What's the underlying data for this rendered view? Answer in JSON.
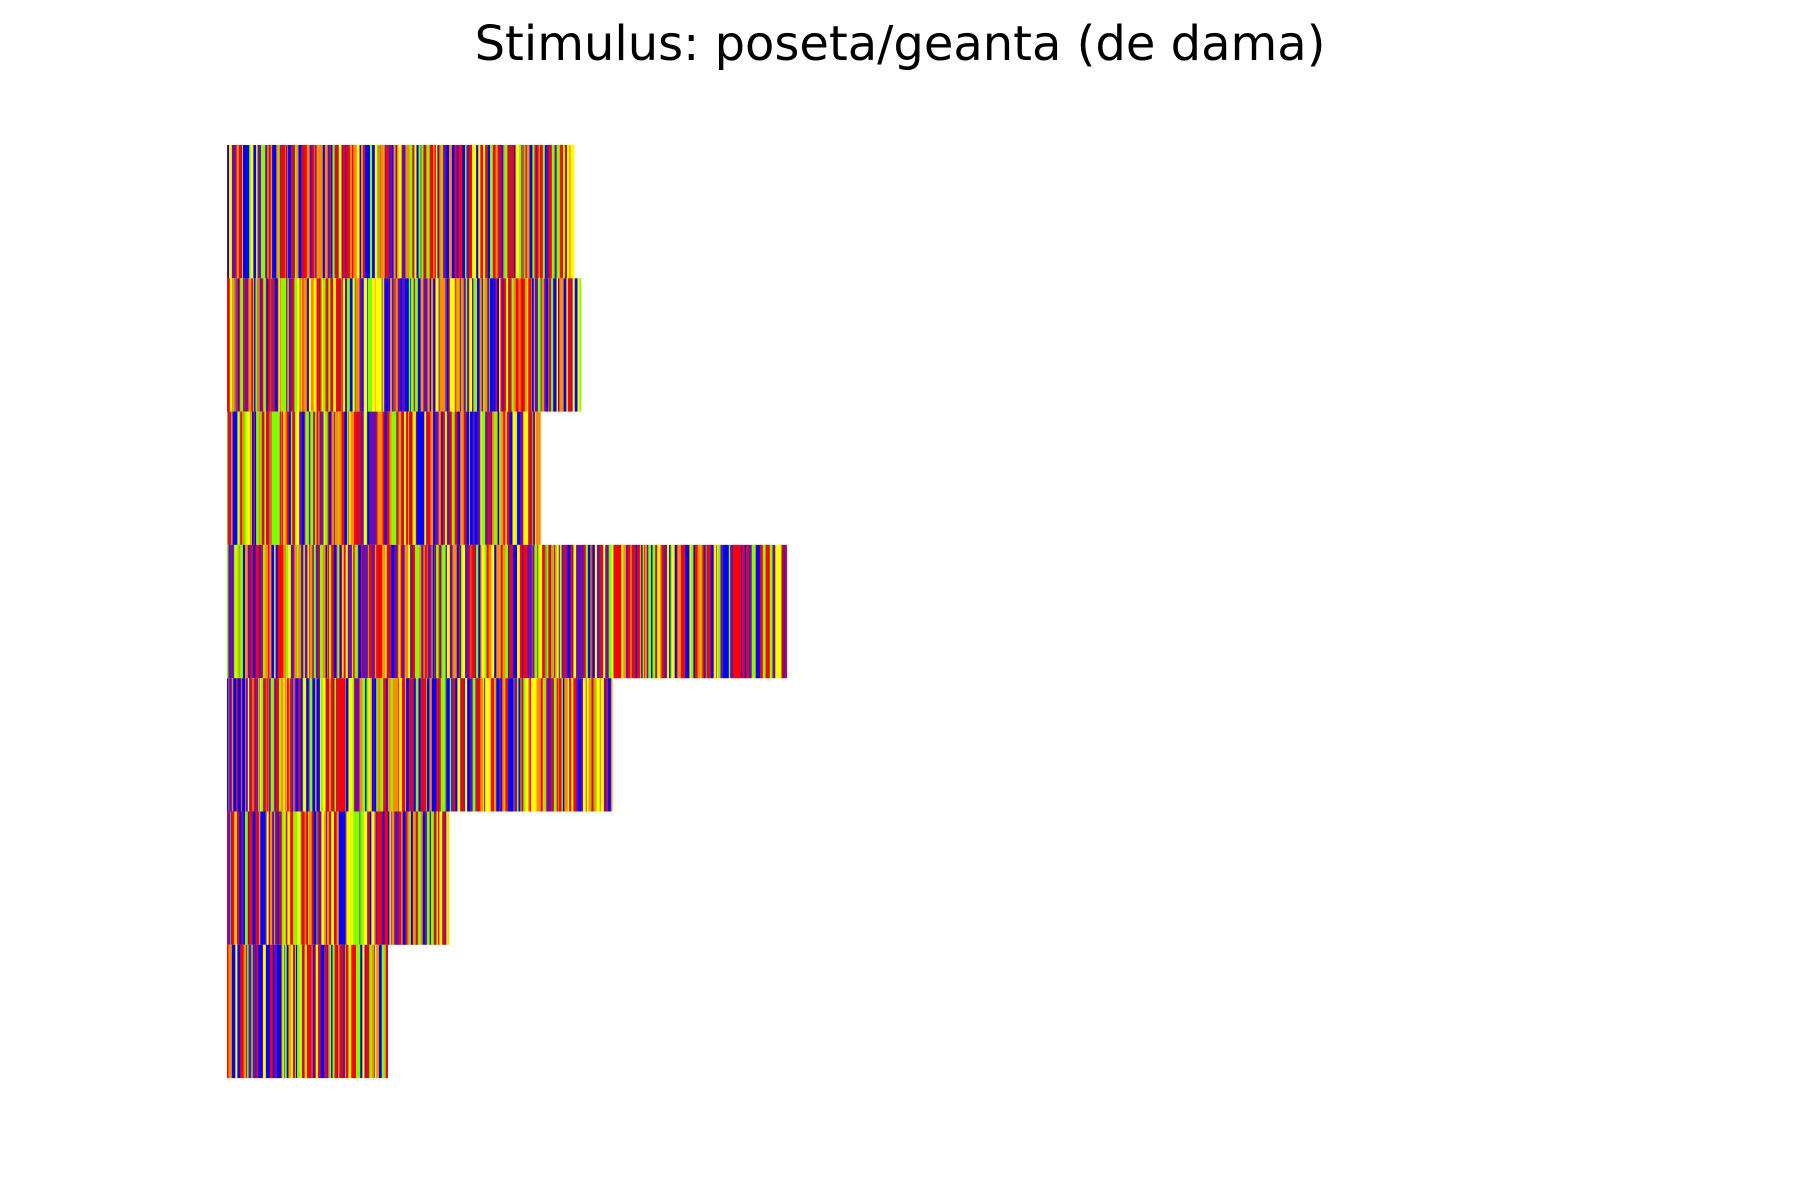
{
  "chart_data": {
    "type": "heatmap",
    "title": "Stimulus: poseta/geanta (de dama)",
    "xlabel": "",
    "ylabel": "",
    "axes_visible": false,
    "grid": false,
    "palette": [
      "#0000ff",
      "#6a0dad",
      "#c8102e",
      "#ff0000",
      "#ff8c00",
      "#ffff00",
      "#7fff00"
    ],
    "color_names": [
      "blue",
      "purple",
      "crimson",
      "red",
      "orange",
      "yellow",
      "chartreuse"
    ],
    "rows": [
      {
        "length": 300,
        "seed": 11
      },
      {
        "length": 306,
        "seed": 23
      },
      {
        "length": 271,
        "seed": 37
      },
      {
        "length": 484,
        "seed": 41
      },
      {
        "length": 333,
        "seed": 53
      },
      {
        "length": 192,
        "seed": 67
      },
      {
        "length": 139,
        "seed": 79
      }
    ],
    "xlim": [
      0,
      1142
    ]
  }
}
